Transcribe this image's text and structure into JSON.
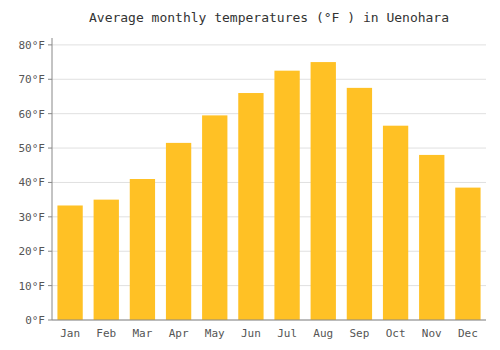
{
  "chart_data": {
    "type": "bar",
    "title": "Average monthly temperatures (°F ) in Uenohara",
    "categories": [
      "Jan",
      "Feb",
      "Mar",
      "Apr",
      "May",
      "Jun",
      "Jul",
      "Aug",
      "Sep",
      "Oct",
      "Nov",
      "Dec"
    ],
    "values": [
      33.3,
      35.0,
      41.0,
      51.5,
      59.5,
      66.0,
      72.5,
      75.0,
      67.5,
      56.5,
      48.0,
      38.5
    ],
    "color": "#FFC125",
    "ylim": [
      0,
      82
    ],
    "yticks": [
      {
        "value": 0,
        "label": "0°F"
      },
      {
        "value": 10,
        "label": "10°F"
      },
      {
        "value": 20,
        "label": "20°F"
      },
      {
        "value": 30,
        "label": "30°F"
      },
      {
        "value": 40,
        "label": "40°F"
      },
      {
        "value": 50,
        "label": "50°F"
      },
      {
        "value": 60,
        "label": "60°F"
      },
      {
        "value": 70,
        "label": "70°F"
      },
      {
        "value": 80,
        "label": "80°F"
      }
    ],
    "grid": true
  }
}
